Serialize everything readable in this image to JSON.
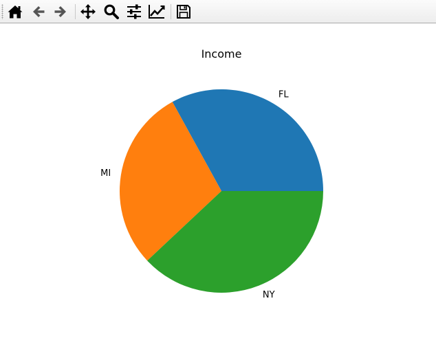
{
  "toolbar": {
    "buttons": [
      {
        "name": "home",
        "icon": "home-icon"
      },
      {
        "name": "back",
        "icon": "arrow-left-icon"
      },
      {
        "name": "forward",
        "icon": "arrow-right-icon"
      },
      {
        "name": "pan",
        "icon": "move-icon"
      },
      {
        "name": "zoom",
        "icon": "zoom-icon"
      },
      {
        "name": "configure-subplots",
        "icon": "sliders-icon"
      },
      {
        "name": "edit-axis",
        "icon": "line-chart-icon"
      },
      {
        "name": "save",
        "icon": "floppy-disk-icon"
      }
    ]
  },
  "chart_data": {
    "type": "pie",
    "title": "Income",
    "labels": [
      "FL",
      "MI",
      "NY"
    ],
    "values": [
      33,
      29,
      38
    ],
    "colors": [
      "#1f77b4",
      "#ff7f0e",
      "#2ca02c"
    ],
    "startangle": 0,
    "counterclock": true,
    "legend": "none"
  }
}
